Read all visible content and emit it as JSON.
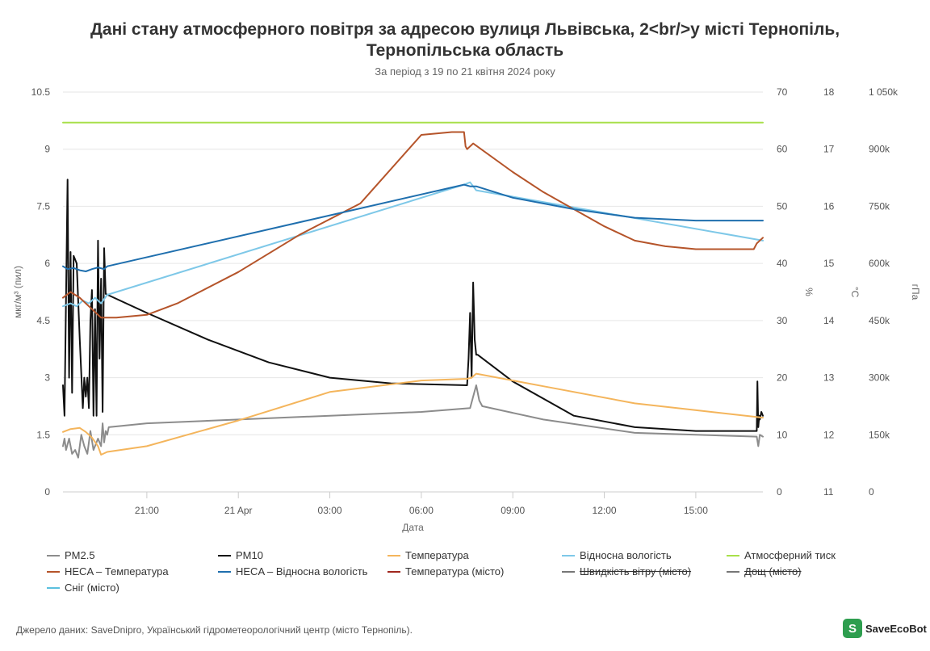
{
  "title_line1": "Дані стану атмосферного повітря за адресою вулиця Львівська, 2<br/>у місті Тернопіль,",
  "title_line2": "Тернопільська область",
  "subtitle": "За період з 19 по 21 квітня 2024 року",
  "source_text": "Джерело даних: SaveDnipro, Український гідрометеорологічний центр (місто Тернопіль).",
  "logo": {
    "icon": "savecobot-logo-icon",
    "mark": "S",
    "text": "SaveEcoBot",
    "color": "#2e9e4f"
  },
  "chart_data": {
    "type": "line",
    "xlabel": "Дата",
    "x_ticks": [
      "21:00",
      "21 Apr",
      "03:00",
      "06:00",
      "09:00",
      "12:00",
      "15:00"
    ],
    "x_range_hours": [
      -2.75,
      20.2
    ],
    "x_tick_hours": [
      0,
      3,
      6,
      9,
      12,
      15,
      18
    ],
    "axes": [
      {
        "id": "pm",
        "title": "мкг/м³ (пил)",
        "range": [
          0,
          10.5
        ],
        "ticks": [
          "0",
          "1.5",
          "3",
          "4.5",
          "6",
          "7.5",
          "9",
          "10.5"
        ]
      },
      {
        "id": "hum",
        "title": "%",
        "range": [
          0,
          70
        ],
        "ticks": [
          "0",
          "10",
          "20",
          "30",
          "40",
          "50",
          "60",
          "70"
        ]
      },
      {
        "id": "temp",
        "title": "°C",
        "range": [
          11,
          18
        ],
        "ticks": [
          "11",
          "12",
          "13",
          "14",
          "15",
          "16",
          "17",
          "18"
        ]
      },
      {
        "id": "press",
        "title": "гПа",
        "range": [
          0,
          1050000
        ],
        "ticks": [
          "0",
          "150k",
          "300k",
          "450k",
          "600k",
          "750k",
          "900k",
          "1 050k"
        ]
      }
    ],
    "grid": true,
    "legend_position": "bottom",
    "series": [
      {
        "name": "PM2.5",
        "color": "#8c8c8c",
        "axis": "pm",
        "visible": true,
        "x": [
          -2.75,
          -2.7,
          -2.65,
          -2.55,
          -2.45,
          -2.35,
          -2.25,
          -2.15,
          -2.05,
          -1.95,
          -1.85,
          -1.75,
          -1.6,
          -1.5,
          -1.45,
          -1.4,
          -1.35,
          -1.3,
          -1.25,
          0,
          3,
          6,
          9,
          10.6,
          10.8,
          10.9,
          11,
          13,
          16,
          20,
          20.05,
          20.1,
          20.2
        ],
        "y": [
          1.2,
          1.4,
          1.1,
          1.4,
          1.0,
          1.1,
          0.9,
          1.5,
          1.2,
          1.0,
          1.6,
          1.1,
          1.4,
          1.2,
          1.8,
          1.3,
          1.6,
          1.5,
          1.7,
          1.8,
          1.9,
          2.0,
          2.1,
          2.2,
          2.8,
          2.4,
          2.25,
          1.9,
          1.55,
          1.45,
          1.2,
          1.5,
          1.45
        ]
      },
      {
        "name": "PM10",
        "color": "#111111",
        "axis": "pm",
        "visible": true,
        "x": [
          -2.75,
          -2.7,
          -2.6,
          -2.55,
          -2.5,
          -2.45,
          -2.4,
          -2.3,
          -2.2,
          -2.1,
          -2.05,
          -2.0,
          -1.95,
          -1.9,
          -1.85,
          -1.8,
          -1.75,
          -1.7,
          -1.65,
          -1.6,
          -1.55,
          -1.5,
          -1.45,
          -1.4,
          -1.35,
          0,
          2,
          4,
          6,
          8,
          10.5,
          10.55,
          10.6,
          10.65,
          10.7,
          10.75,
          10.8,
          10.85,
          12,
          14,
          16,
          18,
          19.5,
          20.0,
          20.02,
          20.05,
          20.08,
          20.1,
          20.15,
          20.2
        ],
        "y": [
          2.8,
          2.0,
          8.2,
          3.0,
          6.3,
          2.6,
          6.2,
          6.0,
          4.0,
          2.2,
          3.0,
          2.5,
          3.0,
          2.2,
          4.5,
          5.3,
          2.0,
          4.8,
          2.0,
          6.6,
          3.5,
          5.6,
          2.1,
          6.4,
          5.2,
          4.7,
          4.0,
          3.4,
          3.0,
          2.85,
          2.8,
          3.5,
          4.7,
          3.0,
          5.5,
          4.0,
          3.6,
          3.6,
          2.9,
          2.0,
          1.7,
          1.6,
          1.6,
          1.6,
          2.9,
          1.7,
          2.0,
          1.9,
          2.1,
          2.0
        ]
      },
      {
        "name": "Температура",
        "color": "#f4b55c",
        "axis": "temp",
        "visible": true,
        "x": [
          -2.75,
          -2.5,
          -2.2,
          -2.0,
          -1.8,
          -1.6,
          -1.5,
          -1.3,
          0,
          3,
          6,
          9,
          10.5,
          10.65,
          10.8,
          13,
          16,
          20.2
        ],
        "y": [
          12.05,
          12.1,
          12.12,
          12.05,
          11.95,
          11.8,
          11.65,
          11.7,
          11.8,
          12.25,
          12.75,
          12.95,
          12.98,
          13.0,
          13.07,
          12.85,
          12.55,
          12.3
        ]
      },
      {
        "name": "Відносна вологість",
        "color": "#7ec8e8",
        "axis": "hum",
        "visible": true,
        "x": [
          -2.75,
          -2.5,
          -2.3,
          -2.1,
          -1.9,
          -1.7,
          -1.5,
          -1.3,
          10.4,
          10.6,
          10.8,
          20.2
        ],
        "y": [
          32.5,
          33.0,
          32.5,
          33.5,
          33.0,
          34.0,
          33.0,
          34.5,
          53.8,
          54.2,
          52.8,
          44.0
        ]
      },
      {
        "name": "Атмосферний тиск",
        "color": "#a8e04a",
        "axis": "press",
        "visible": true,
        "x": [
          -2.75,
          20.2
        ],
        "y": [
          970000,
          970000
        ]
      },
      {
        "name": "HECA – Температура",
        "color": "#b5542a",
        "axis": "temp",
        "visible": true,
        "x": [
          -2.75,
          -2.5,
          -2.2,
          -2.0,
          -1.8,
          -1.5,
          -1.0,
          0,
          1,
          3,
          5,
          7,
          9,
          10.0,
          10.4,
          10.45,
          10.5,
          10.7,
          12,
          13,
          14,
          15,
          16,
          17,
          18,
          19,
          19.9,
          20.0,
          20.2
        ],
        "y": [
          14.4,
          14.5,
          14.4,
          14.3,
          14.2,
          14.05,
          14.05,
          14.1,
          14.3,
          14.85,
          15.5,
          16.05,
          17.25,
          17.3,
          17.3,
          17.05,
          17.0,
          17.1,
          16.6,
          16.25,
          15.95,
          15.65,
          15.4,
          15.3,
          15.25,
          15.25,
          15.25,
          15.35,
          15.45
        ]
      },
      {
        "name": "HECA – Відносна вологість",
        "color": "#1f6fae",
        "axis": "hum",
        "visible": true,
        "x": [
          -2.75,
          -2.6,
          -2.4,
          -2.2,
          -2.0,
          -1.8,
          -1.6,
          -1.4,
          -1.3,
          10.4,
          10.6,
          10.8,
          12,
          14,
          16,
          18,
          20.2
        ],
        "y": [
          39.5,
          39.0,
          39.2,
          38.8,
          38.6,
          39.0,
          39.3,
          39.0,
          39.5,
          53.8,
          53.5,
          53.5,
          51.5,
          49.5,
          48.0,
          47.5,
          47.5
        ]
      },
      {
        "name": "Температура (місто)",
        "color": "#a0271e",
        "axis": "temp",
        "visible": true,
        "x": [],
        "y": []
      },
      {
        "name": "Швидкість вітру (місто)",
        "color": "#777777",
        "axis": "pm",
        "visible": false,
        "x": [],
        "y": []
      },
      {
        "name": "Дощ (місто)",
        "color": "#777777",
        "axis": "pm",
        "visible": false,
        "x": [],
        "y": []
      },
      {
        "name": "Сніг (місто)",
        "color": "#5bc0de",
        "axis": "pm",
        "visible": true,
        "x": [],
        "y": []
      }
    ]
  }
}
